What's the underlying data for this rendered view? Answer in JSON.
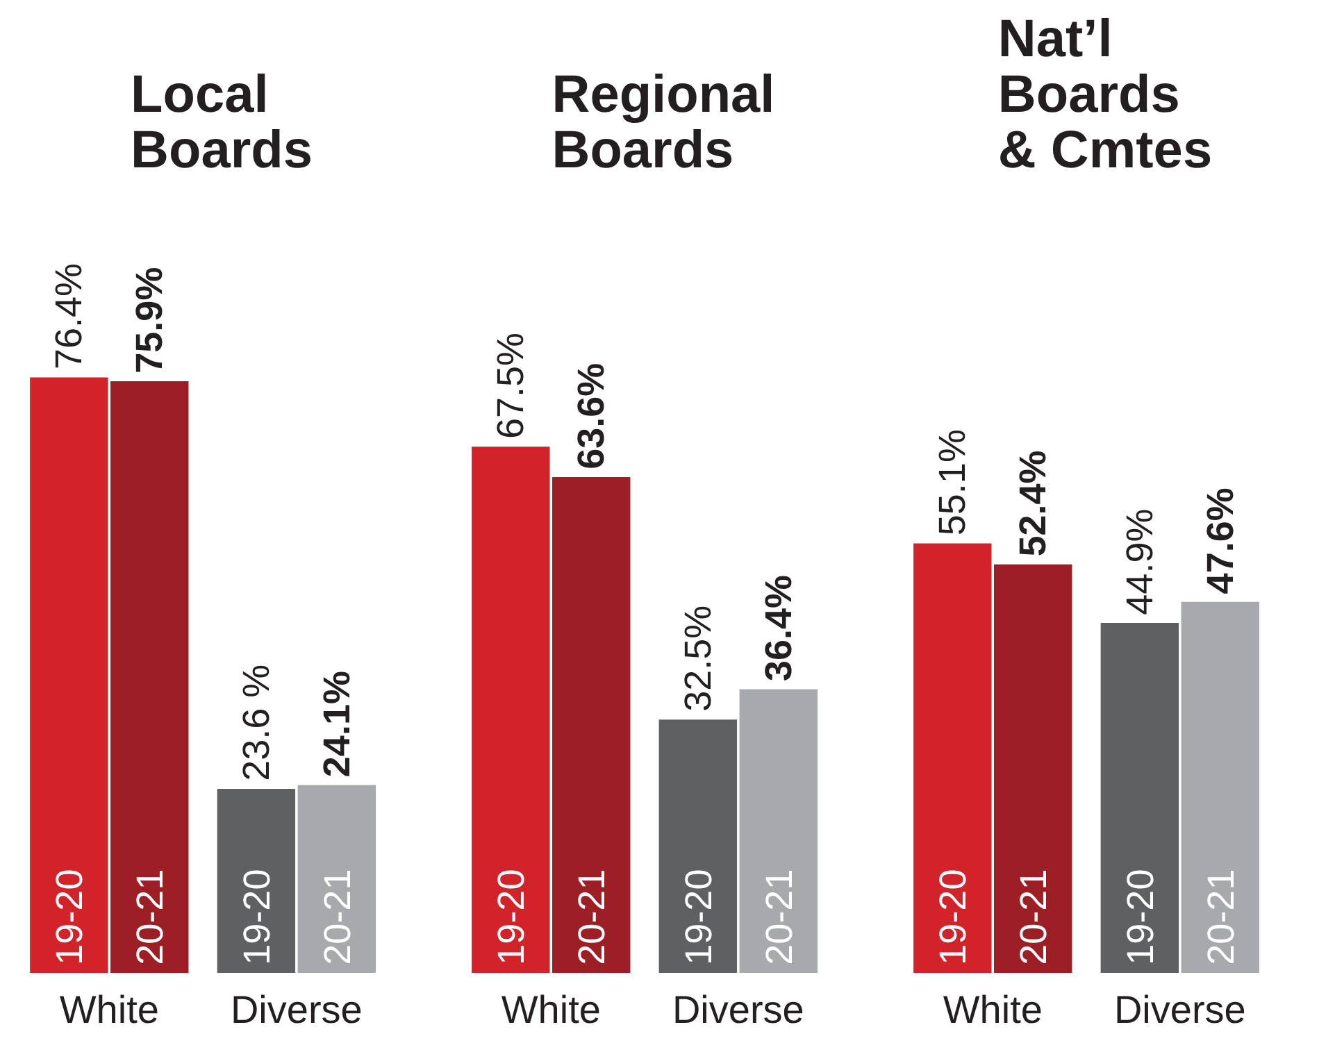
{
  "chart_data": [
    {
      "type": "bar",
      "title": "Local\nBoards",
      "categories": [
        "White",
        "Diverse"
      ],
      "grid": false,
      "data_labels": true,
      "series": [
        {
          "name": "19-20",
          "colors": [
            "#d2232a",
            "#5f6062"
          ],
          "values": [
            76.4,
            23.6
          ],
          "value_labels": [
            "76.4%",
            "23.6 %"
          ]
        },
        {
          "name": "20-21",
          "colors": [
            "#9b1f24",
            "#a7a9ac"
          ],
          "values": [
            75.9,
            24.1
          ],
          "value_labels": [
            "75.9%",
            "24.1%"
          ]
        }
      ]
    },
    {
      "type": "bar",
      "title": "Regional\nBoards",
      "categories": [
        "White",
        "Diverse"
      ],
      "grid": false,
      "data_labels": true,
      "series": [
        {
          "name": "19-20",
          "colors": [
            "#d2232a",
            "#5f6062"
          ],
          "values": [
            67.5,
            32.5
          ],
          "value_labels": [
            "67.5%",
            "32.5%"
          ]
        },
        {
          "name": "20-21",
          "colors": [
            "#9b1f24",
            "#a7a9ac"
          ],
          "values": [
            63.6,
            36.4
          ],
          "value_labels": [
            "63.6%",
            "36.4%"
          ]
        }
      ]
    },
    {
      "type": "bar",
      "title": "Nat’l\nBoards\n& Cmtes",
      "categories": [
        "White",
        "Diverse"
      ],
      "grid": false,
      "data_labels": true,
      "series": [
        {
          "name": "19-20",
          "colors": [
            "#d2232a",
            "#5f6062"
          ],
          "values": [
            55.1,
            44.9
          ],
          "value_labels": [
            "55.1%",
            "44.9%"
          ]
        },
        {
          "name": "20-21",
          "colors": [
            "#9b1f24",
            "#a7a9ac"
          ],
          "values": [
            52.4,
            47.6
          ],
          "value_labels": [
            "52.4%",
            "47.6%"
          ]
        }
      ]
    }
  ]
}
